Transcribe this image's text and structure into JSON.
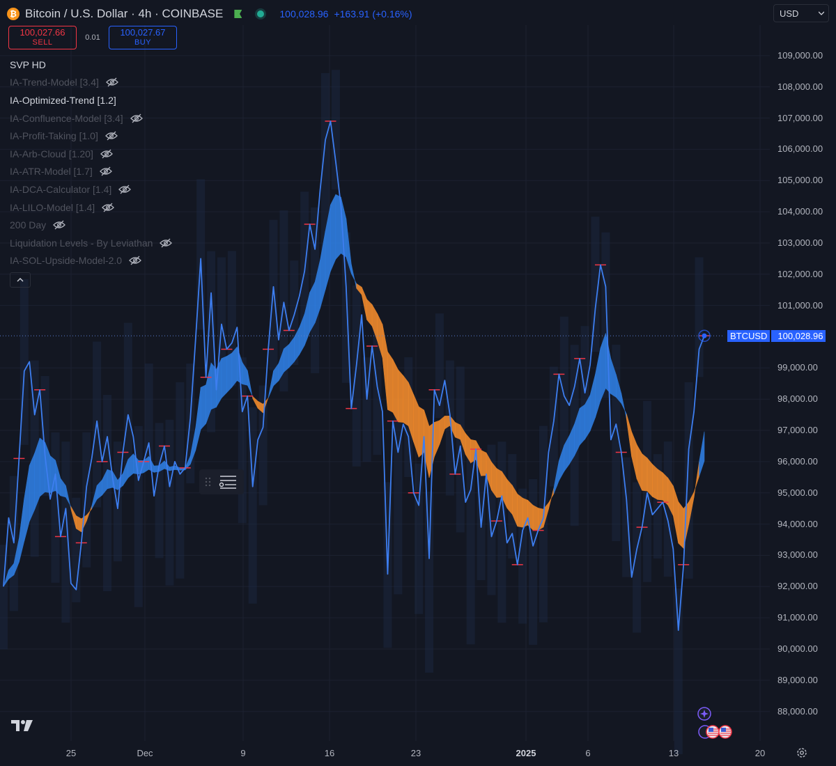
{
  "header": {
    "symbol_title": "Bitcoin / U.S. Dollar · 4h · COINBASE",
    "coin_glyph": "₿",
    "last_price": "100,028.96",
    "change": "+163.91 (+0.16%)",
    "currency": "USD"
  },
  "trade": {
    "sell_price": "100,027.66",
    "sell_label": "SELL",
    "spread": "0.01",
    "buy_price": "100,027.67",
    "buy_label": "BUY"
  },
  "indicators": [
    {
      "label": "SVP HD",
      "active": true,
      "eye": false
    },
    {
      "label": "IA-Trend-Model [3.4]",
      "active": false,
      "eye": true
    },
    {
      "label": "IA-Optimized-Trend [1.2]",
      "active": true,
      "eye": false
    },
    {
      "label": "IA-Confluence-Model [3.4]",
      "active": false,
      "eye": true
    },
    {
      "label": "IA-Profit-Taking [1.0]",
      "active": false,
      "eye": true
    },
    {
      "label": "IA-Arb-Cloud [1.20]",
      "active": false,
      "eye": true
    },
    {
      "label": "IA-ATR-Model [1.7]",
      "active": false,
      "eye": true
    },
    {
      "label": "IA-DCA-Calculator [1.4]",
      "active": false,
      "eye": true
    },
    {
      "label": "IA-LILO-Model [1.4]",
      "active": false,
      "eye": true
    },
    {
      "label": "200 Day",
      "active": false,
      "eye": true
    },
    {
      "label": "Liquidation Levels - By Leviathan",
      "active": false,
      "eye": true
    },
    {
      "label": "IA-SOL-Upside-Model-2.0",
      "active": false,
      "eye": true
    }
  ],
  "price_axis": {
    "labels": [
      "109,000.00",
      "108,000.00",
      "107,000.00",
      "106,000.00",
      "105,000.00",
      "104,000.00",
      "103,000.00",
      "102,000.00",
      "101,000.00",
      "99,000.00",
      "98,000.00",
      "97,000.00",
      "96,000.00",
      "95,000.00",
      "94,000.00",
      "93,000.00",
      "92,000.00",
      "91,000.00",
      "90,000.00",
      "89,000.00",
      "88,000.00"
    ],
    "values": [
      109000,
      108000,
      107000,
      106000,
      105000,
      104000,
      103000,
      102000,
      101000,
      99000,
      98000,
      97000,
      96000,
      95000,
      94000,
      93000,
      92000,
      91000,
      90000,
      89000,
      88000
    ]
  },
  "time_axis": [
    {
      "label": "25",
      "bold": false
    },
    {
      "label": "Dec",
      "bold": false
    },
    {
      "label": "9",
      "bold": false
    },
    {
      "label": "16",
      "bold": false
    },
    {
      "label": "23",
      "bold": false
    },
    {
      "label": "2025",
      "bold": true
    },
    {
      "label": "6",
      "bold": false
    },
    {
      "label": "13",
      "bold": false
    },
    {
      "label": "20",
      "bold": false
    }
  ],
  "price_tag": {
    "symbol": "BTCUSD",
    "price": "100,028.96",
    "value": 100028.96
  },
  "colors": {
    "background": "#131722",
    "price_line": "#3d7ef0",
    "ribbon_bull": "#2f7de0",
    "ribbon_bear": "#f08a2c",
    "level_mark": "#f23645",
    "accent": "#2962ff"
  },
  "chart_data": {
    "type": "line",
    "series": [
      {
        "values": [
          92000,
          94200,
          93400,
          96100,
          98900,
          99200,
          97500,
          98300,
          96200,
          94800,
          95600,
          93600,
          94500,
          92100,
          91900,
          93400,
          95200,
          96100,
          97300,
          96000,
          96800,
          95500,
          94500,
          96300,
          97500,
          96800,
          95400,
          96000,
          96600,
          94900,
          95900,
          96500,
          95200,
          96000,
          95600,
          95800,
          97400,
          99900,
          102500,
          98700,
          101400,
          98300,
          100400,
          99600,
          99800,
          100300,
          97600,
          98100,
          95200,
          96700,
          97100,
          99600,
          101600,
          99900,
          101100,
          100200,
          100700,
          101300,
          102100,
          103600,
          102800,
          104700,
          106300,
          106900,
          105600,
          104200,
          101600,
          97700,
          99100,
          100700,
          98000,
          99700,
          98400,
          97600,
          92400,
          97300,
          96300,
          97200,
          96800,
          95000,
          94600,
          96800,
          92900,
          98300,
          97800,
          98600,
          97500,
          95600,
          96500,
          94700,
          95100,
          96400,
          93900,
          95600,
          93600,
          94100,
          94900,
          93400,
          93700,
          92700,
          93800,
          94200,
          93300,
          93800,
          94200,
          96300,
          97300,
          98800,
          98100,
          97800,
          98400,
          99300,
          98200,
          99100,
          100900,
          102300,
          101600,
          96700,
          97200,
          96300,
          94800,
          92300,
          93200,
          93900,
          95000,
          94300,
          94500,
          94700,
          94100,
          93200,
          90600,
          92700,
          96400,
          97600,
          99600,
          100029
        ]
      }
    ],
    "ylim": [
      87500,
      109300
    ]
  }
}
